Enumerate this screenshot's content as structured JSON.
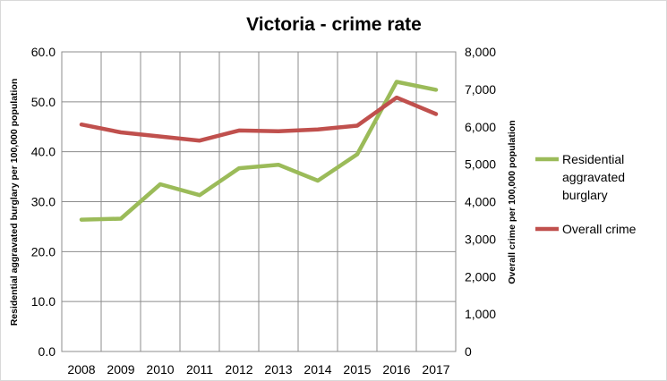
{
  "chart_data": {
    "type": "line",
    "title": "Victoria - crime rate",
    "categories": [
      "2008",
      "2009",
      "2010",
      "2011",
      "2012",
      "2013",
      "2014",
      "2015",
      "2016",
      "2017"
    ],
    "ylabel_left": "Residential aggravated burglary per 100,000 population",
    "ylabel_right": "Overall crime per 100,000 population",
    "ylim_left": [
      0,
      60
    ],
    "ylim_right": [
      0,
      8000
    ],
    "yticks_left": [
      "0.0",
      "10.0",
      "20.0",
      "30.0",
      "40.0",
      "50.0",
      "60.0"
    ],
    "yticks_right": [
      "0",
      "1,000",
      "2,000",
      "3,000",
      "4,000",
      "5,000",
      "6,000",
      "7,000",
      "8,000"
    ],
    "grid": true,
    "legend_position": "right",
    "series": [
      {
        "name": "Residential aggravated burglary",
        "legend_lines": [
          "Residential",
          "aggravated",
          "burglary"
        ],
        "axis": "left",
        "color": "#9bbb59",
        "values": [
          26.4,
          26.6,
          33.5,
          31.3,
          36.7,
          37.4,
          34.2,
          39.5,
          54.0,
          52.4
        ]
      },
      {
        "name": "Overall crime",
        "legend_lines": [
          "Overall crime"
        ],
        "axis": "right",
        "color": "#c0504d",
        "values": [
          6060,
          5850,
          5740,
          5630,
          5900,
          5880,
          5930,
          6030,
          6780,
          6340
        ]
      }
    ]
  }
}
